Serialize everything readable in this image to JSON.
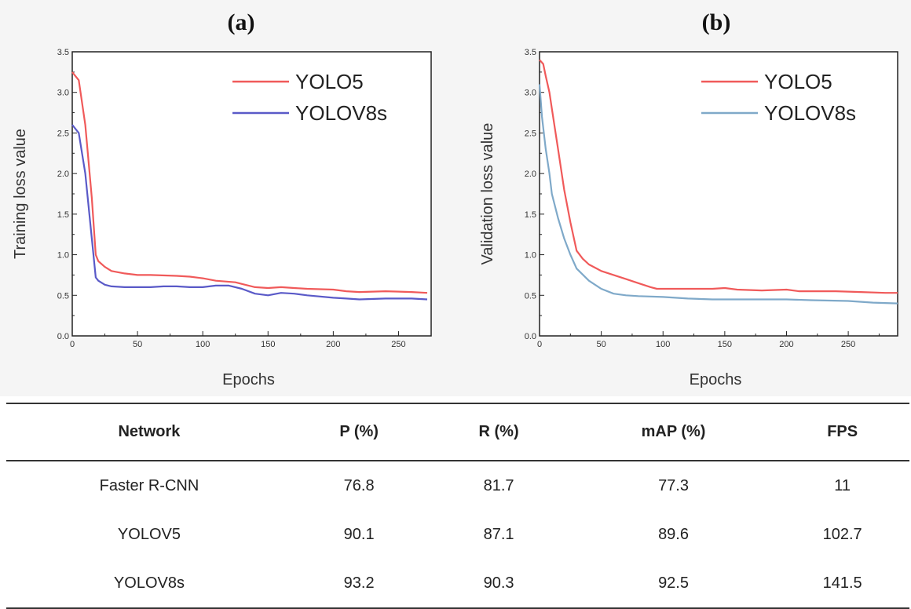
{
  "chart_data": [
    {
      "type": "line",
      "title": "(a)",
      "xlabel": "Epochs",
      "ylabel": "Training loss value",
      "xlim": [
        0,
        275
      ],
      "ylim": [
        0,
        3.5
      ],
      "xticks": [
        0,
        50,
        100,
        150,
        200,
        250
      ],
      "yticks": [
        0.0,
        0.5,
        1.0,
        1.5,
        2.0,
        2.5,
        3.0,
        3.5
      ],
      "grid": false,
      "legend_position": "top-right",
      "series": [
        {
          "name": "YOLO5",
          "color": "#f05a5a",
          "x": [
            0,
            5,
            10,
            15,
            18,
            20,
            25,
            30,
            40,
            50,
            60,
            80,
            90,
            100,
            110,
            125,
            130,
            140,
            150,
            160,
            170,
            180,
            200,
            210,
            220,
            240,
            260,
            272
          ],
          "y": [
            3.25,
            3.15,
            2.6,
            1.7,
            1.0,
            0.92,
            0.85,
            0.8,
            0.77,
            0.75,
            0.75,
            0.74,
            0.73,
            0.71,
            0.68,
            0.66,
            0.64,
            0.6,
            0.59,
            0.6,
            0.59,
            0.58,
            0.57,
            0.55,
            0.54,
            0.55,
            0.54,
            0.53
          ]
        },
        {
          "name": "YOLOV8s",
          "color": "#5a5ac8",
          "x": [
            0,
            5,
            10,
            15,
            18,
            20,
            25,
            30,
            40,
            50,
            60,
            70,
            80,
            90,
            100,
            110,
            120,
            130,
            140,
            150,
            160,
            170,
            180,
            200,
            210,
            220,
            240,
            260,
            272
          ],
          "y": [
            2.6,
            2.5,
            2.0,
            1.2,
            0.72,
            0.68,
            0.63,
            0.61,
            0.6,
            0.6,
            0.6,
            0.61,
            0.61,
            0.6,
            0.6,
            0.62,
            0.62,
            0.58,
            0.52,
            0.5,
            0.53,
            0.52,
            0.5,
            0.47,
            0.46,
            0.45,
            0.46,
            0.46,
            0.45
          ]
        }
      ]
    },
    {
      "type": "line",
      "title": "(b)",
      "xlabel": "Epochs",
      "ylabel": "Validation loss value",
      "xlim": [
        0,
        290
      ],
      "ylim": [
        0,
        3.5
      ],
      "xticks": [
        0,
        50,
        100,
        150,
        200,
        250
      ],
      "yticks": [
        0.0,
        0.5,
        1.0,
        1.5,
        2.0,
        2.5,
        3.0,
        3.5
      ],
      "grid": false,
      "legend_position": "top-right",
      "series": [
        {
          "name": "YOLO5",
          "color": "#f05a5a",
          "x": [
            0,
            3,
            5,
            8,
            10,
            15,
            20,
            25,
            30,
            35,
            40,
            50,
            60,
            70,
            80,
            90,
            95,
            100,
            120,
            140,
            150,
            160,
            180,
            200,
            210,
            220,
            240,
            260,
            280,
            290
          ],
          "y": [
            3.4,
            3.35,
            3.2,
            3.0,
            2.8,
            2.3,
            1.8,
            1.4,
            1.05,
            0.95,
            0.88,
            0.8,
            0.75,
            0.7,
            0.65,
            0.6,
            0.58,
            0.58,
            0.58,
            0.58,
            0.59,
            0.57,
            0.56,
            0.57,
            0.55,
            0.55,
            0.55,
            0.54,
            0.53,
            0.53
          ]
        },
        {
          "name": "YOLOV8s",
          "color": "#7fa9c9",
          "x": [
            0,
            2,
            5,
            8,
            10,
            15,
            20,
            25,
            30,
            40,
            50,
            60,
            70,
            80,
            100,
            120,
            140,
            150,
            160,
            180,
            200,
            220,
            250,
            270,
            290
          ],
          "y": [
            3.1,
            2.7,
            2.3,
            2.0,
            1.75,
            1.45,
            1.2,
            1.0,
            0.83,
            0.68,
            0.58,
            0.52,
            0.5,
            0.49,
            0.48,
            0.46,
            0.45,
            0.45,
            0.45,
            0.45,
            0.45,
            0.44,
            0.43,
            0.41,
            0.4
          ]
        }
      ]
    }
  ],
  "table": {
    "headers": [
      "Network",
      "P (%)",
      "R (%)",
      "mAP (%)",
      "FPS"
    ],
    "rows": [
      [
        "Faster R-CNN",
        "76.8",
        "81.7",
        "77.3",
        "11"
      ],
      [
        "YOLOV5",
        "90.1",
        "87.1",
        "89.6",
        "102.7"
      ],
      [
        "YOLOV8s",
        "93.2",
        "90.3",
        "92.5",
        "141.5"
      ]
    ]
  }
}
